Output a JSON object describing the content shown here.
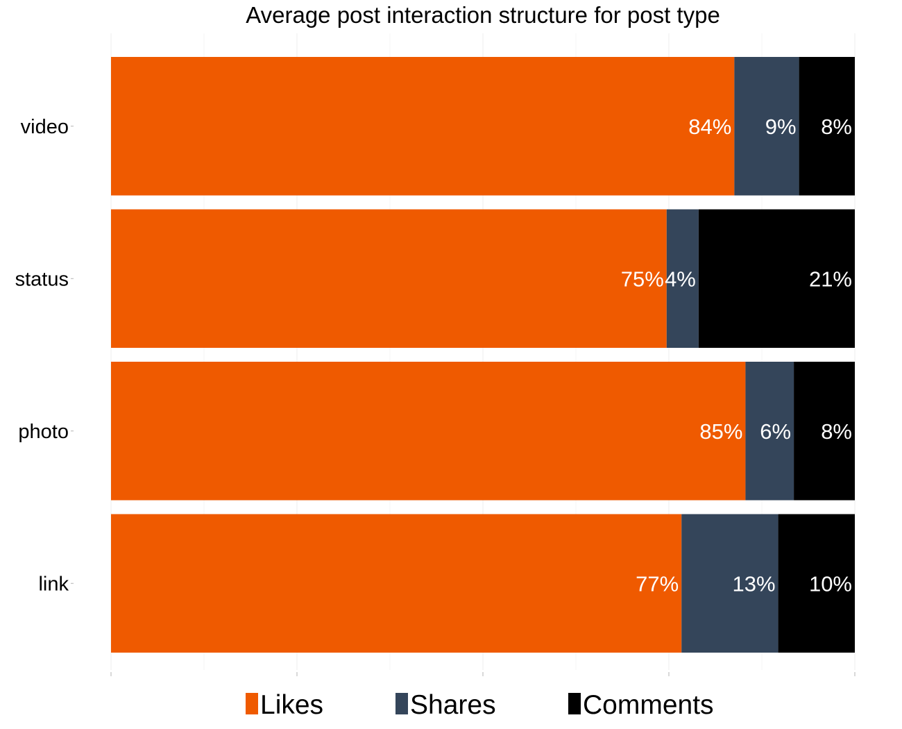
{
  "chart_data": {
    "type": "bar",
    "orientation": "horizontal",
    "stacked": true,
    "title": "Average post interaction structure for post type",
    "xlabel": "",
    "ylabel": "",
    "xlim": [
      0,
      1
    ],
    "categories": [
      "video",
      "status",
      "photo",
      "link"
    ],
    "series": [
      {
        "name": "Likes",
        "color": "#ef5a00",
        "values": [
          0.838,
          0.747,
          0.853,
          0.767
        ],
        "labels": [
          "84%",
          "75%",
          "85%",
          "77%"
        ]
      },
      {
        "name": "Shares",
        "color": "#34455a",
        "values": [
          0.087,
          0.043,
          0.065,
          0.13
        ],
        "labels": [
          "9%",
          "4%",
          "6%",
          "13%"
        ]
      },
      {
        "name": "Comments",
        "color": "#000000",
        "values": [
          0.075,
          0.21,
          0.082,
          0.103
        ],
        "labels": [
          "8%",
          "21%",
          "8%",
          "10%"
        ]
      }
    ],
    "grid": true,
    "legend": "bottom"
  }
}
